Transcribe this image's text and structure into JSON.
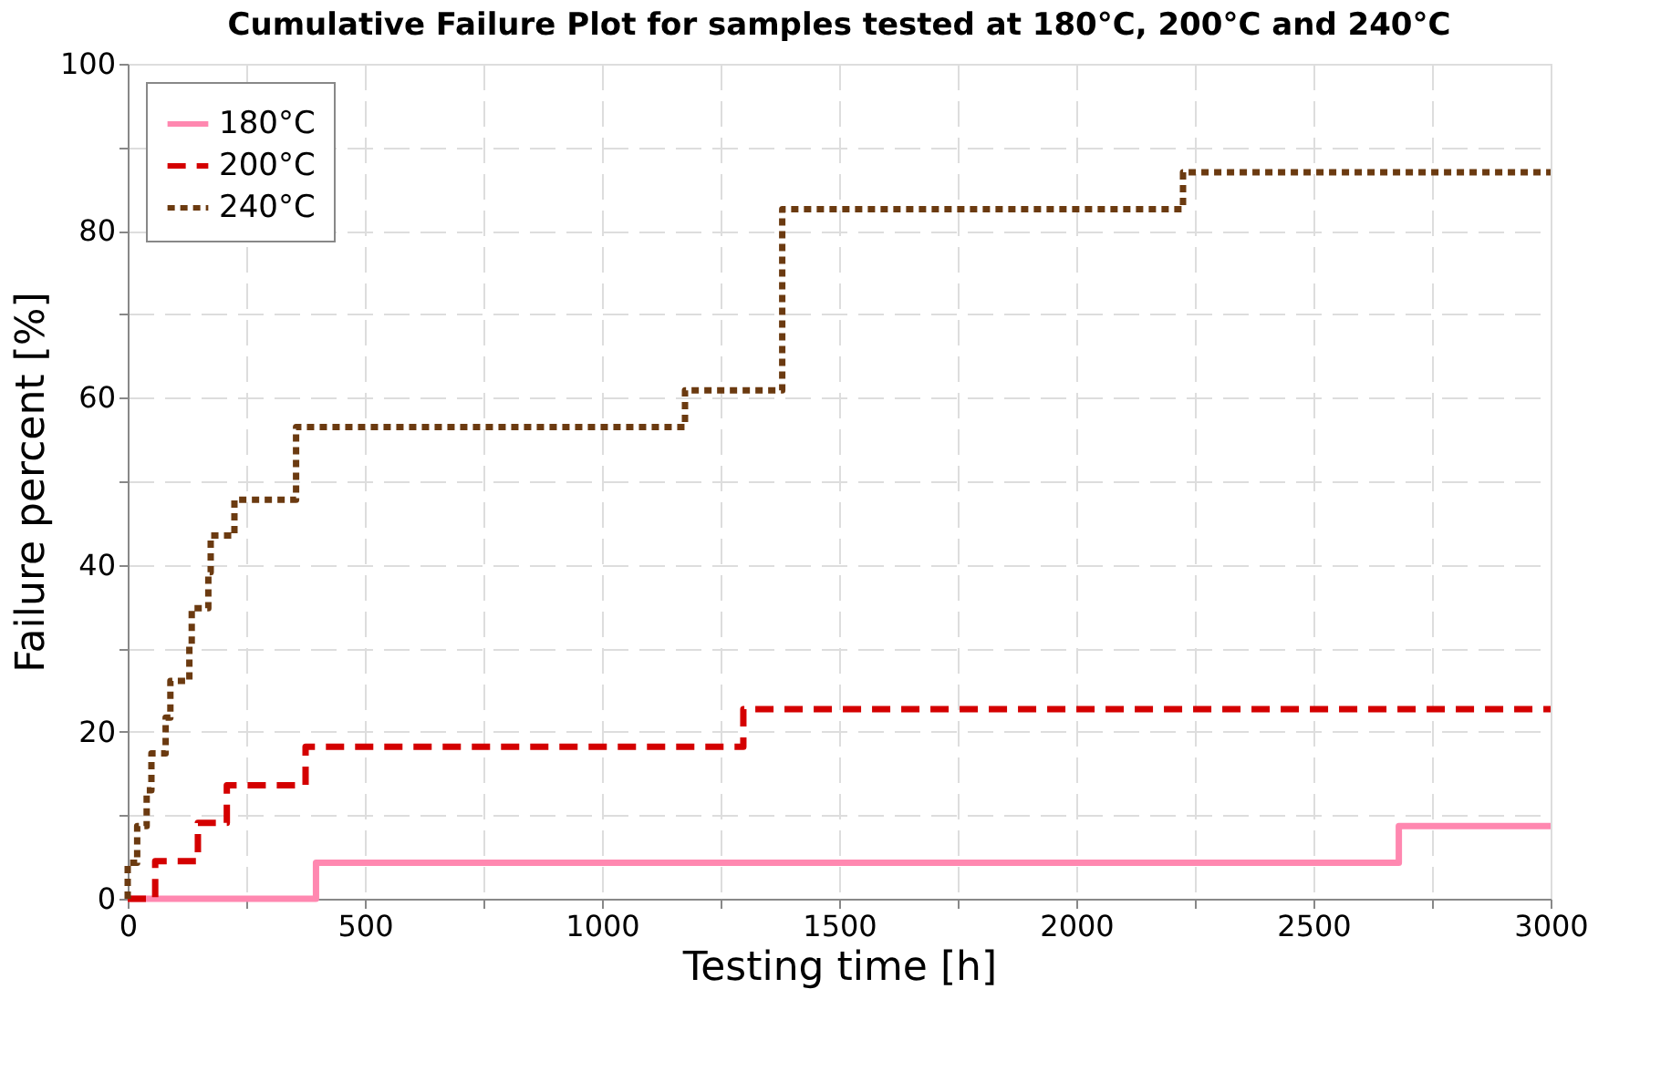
{
  "chart_data": {
    "type": "step",
    "title": "Cumulative Failure Plot for samples tested at 180°C, 200°C and 240°C",
    "xlabel": "Testing time [h]",
    "ylabel": "Failure percent [%]",
    "series": [
      {
        "name": "180°C",
        "color": "#ff88b0",
        "line_style": "solid",
        "x": [
          0,
          397,
          2680,
          3000
        ],
        "values": [
          0,
          4.3,
          8.7,
          8.7
        ]
      },
      {
        "name": "200°C",
        "color": "#d40000",
        "line_style": "dashed",
        "x": [
          0,
          58,
          148,
          209,
          375,
          1298,
          3000
        ],
        "values": [
          0,
          4.5,
          9.1,
          13.6,
          18.2,
          22.7,
          22.7
        ]
      },
      {
        "name": "240°C",
        "color": "#6b3a10",
        "line_style": "dotted",
        "x": [
          0,
          0,
          20,
          40,
          50,
          80,
          90,
          130,
          135,
          170,
          175,
          225,
          355,
          1175,
          1380,
          2225,
          3000
        ],
        "values": [
          0,
          4.3,
          8.7,
          13.0,
          17.4,
          21.7,
          26.1,
          30.4,
          34.8,
          39.1,
          43.5,
          47.8,
          56.5,
          60.9,
          82.6,
          87.0,
          87.0
        ]
      }
    ],
    "xlim": [
      0,
      3000
    ],
    "ylim": [
      0,
      100
    ],
    "xticks": [
      0,
      {
        "value": 250,
        "label": null
      },
      500,
      {
        "value": 750,
        "label": null
      },
      1000,
      {
        "value": 1250,
        "label": null
      },
      1500,
      {
        "value": 1750,
        "label": null
      },
      2000,
      {
        "value": 2250,
        "label": null
      },
      2500,
      {
        "value": 2750,
        "label": null
      },
      3000
    ],
    "yticks": [
      0,
      {
        "value": 10,
        "label": null
      },
      20,
      {
        "value": 30,
        "label": null
      },
      40,
      {
        "value": 50,
        "label": null
      },
      60,
      {
        "value": 70,
        "label": null
      },
      80,
      {
        "value": 90,
        "label": null
      },
      100
    ],
    "grid": true,
    "legend": "top left"
  }
}
